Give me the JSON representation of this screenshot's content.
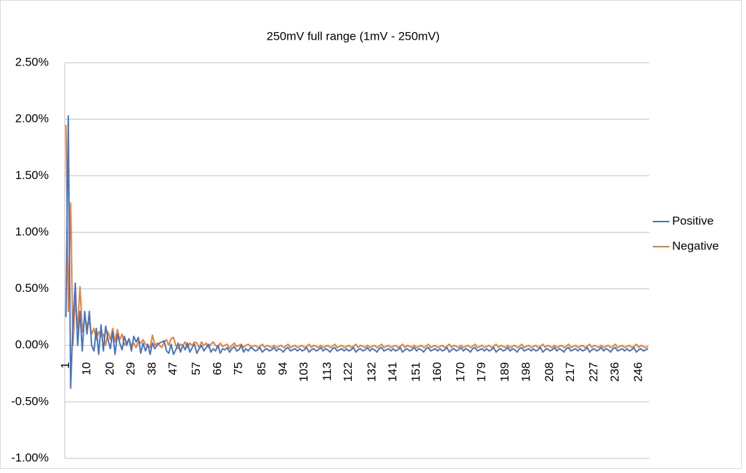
{
  "chart_data": {
    "type": "line",
    "title": "250mV full range (1mV - 250mV)",
    "categories": [
      1,
      null,
      null,
      null,
      null,
      null,
      null,
      null,
      null,
      10,
      null,
      null,
      null,
      null,
      null,
      null,
      null,
      null,
      null,
      20,
      null,
      null,
      null,
      null,
      null,
      null,
      null,
      null,
      29,
      null,
      null,
      null,
      null,
      null,
      null,
      null,
      null,
      38,
      null,
      null,
      null,
      null,
      null,
      null,
      null,
      null,
      47,
      null,
      null,
      null,
      null,
      null,
      null,
      null,
      null,
      null,
      57,
      null,
      null,
      null,
      null,
      null,
      null,
      null,
      null,
      66,
      null,
      null,
      null,
      null,
      null,
      null,
      null,
      null,
      75,
      null,
      null,
      null,
      null,
      null,
      null,
      null,
      null,
      null,
      85,
      null,
      null,
      null,
      null,
      null,
      null,
      null,
      null,
      94,
      null,
      null,
      null,
      null,
      null,
      null,
      null,
      null,
      103,
      null,
      null,
      null,
      null,
      null,
      null,
      null,
      null,
      null,
      113,
      null,
      null,
      null,
      null,
      null,
      null,
      null,
      null,
      122,
      null,
      null,
      null,
      null,
      null,
      null,
      null,
      null,
      null,
      132,
      null,
      null,
      null,
      null,
      null,
      null,
      null,
      null,
      141,
      null,
      null,
      null,
      null,
      null,
      null,
      null,
      null,
      null,
      151,
      null,
      null,
      null,
      null,
      null,
      null,
      null,
      null,
      160,
      null,
      null,
      null,
      null,
      null,
      null,
      null,
      null,
      null,
      170,
      null,
      null,
      null,
      null,
      null,
      null,
      null,
      null,
      179,
      null,
      null,
      null,
      null,
      null,
      null,
      null,
      null,
      null,
      189,
      null,
      null,
      null,
      null,
      null,
      null,
      null,
      null,
      198,
      null,
      null,
      null,
      null,
      null,
      null,
      null,
      null,
      null,
      208,
      null,
      null,
      null,
      null,
      null,
      null,
      null,
      null,
      217,
      null,
      null,
      null,
      null,
      null,
      null,
      null,
      null,
      null,
      227,
      null,
      null,
      null,
      null,
      null,
      null,
      null,
      null,
      236,
      null,
      null,
      null,
      null,
      null,
      null,
      null,
      null,
      null,
      246,
      null,
      null,
      null,
      null
    ],
    "series": [
      {
        "name": "Positive",
        "color": "#4472c4",
        "values": [
          0.25,
          2.03,
          -0.38,
          0.2,
          0.55,
          0.0,
          0.3,
          -0.05,
          0.3,
          0.1,
          0.3,
          0.0,
          -0.05,
          0.15,
          -0.08,
          0.18,
          -0.05,
          0.17,
          0.05,
          -0.03,
          0.12,
          -0.08,
          0.1,
          0.02,
          -0.04,
          0.08,
          0.0,
          0.06,
          -0.05,
          0.08,
          0.03,
          0.07,
          -0.07,
          0.02,
          -0.05,
          0.01,
          -0.08,
          0.02,
          -0.03,
          0.0,
          0.02,
          0.03,
          0.04,
          -0.05,
          -0.07,
          0.01,
          -0.08,
          -0.04,
          0.02,
          -0.06,
          0.0,
          -0.04,
          0.02,
          -0.06,
          -0.02,
          0.01,
          -0.07,
          -0.03,
          0.0,
          -0.05,
          -0.02,
          0.01,
          -0.06,
          -0.03,
          -0.05,
          0.0,
          -0.07,
          -0.03,
          -0.04,
          -0.02,
          -0.06,
          -0.03,
          -0.01,
          -0.05,
          -0.04,
          0.0,
          -0.06,
          -0.03,
          -0.05,
          -0.02,
          -0.03,
          -0.05,
          -0.04,
          -0.02,
          -0.06,
          -0.04,
          -0.03,
          -0.05,
          -0.04,
          -0.02,
          -0.05,
          -0.03,
          -0.04,
          -0.06,
          -0.03,
          -0.02,
          -0.05,
          -0.04,
          -0.03,
          -0.05,
          -0.03,
          -0.05,
          -0.04,
          -0.02,
          -0.06,
          -0.04,
          -0.03,
          -0.05,
          -0.04,
          -0.02,
          -0.05,
          -0.03,
          -0.04,
          -0.06,
          -0.03,
          -0.02,
          -0.05,
          -0.04,
          -0.03,
          -0.05,
          -0.03,
          -0.05,
          -0.04,
          -0.02,
          -0.06,
          -0.04,
          -0.03,
          -0.05,
          -0.04,
          -0.02,
          -0.05,
          -0.03,
          -0.04,
          -0.06,
          -0.03,
          -0.02,
          -0.05,
          -0.04,
          -0.03,
          -0.05,
          -0.03,
          -0.05,
          -0.04,
          -0.02,
          -0.06,
          -0.04,
          -0.03,
          -0.05,
          -0.04,
          -0.02,
          -0.05,
          -0.03,
          -0.04,
          -0.06,
          -0.03,
          -0.02,
          -0.05,
          -0.04,
          -0.03,
          -0.05,
          -0.03,
          -0.05,
          -0.04,
          -0.02,
          -0.06,
          -0.04,
          -0.03,
          -0.05,
          -0.04,
          -0.02,
          -0.05,
          -0.03,
          -0.04,
          -0.06,
          -0.03,
          -0.02,
          -0.05,
          -0.04,
          -0.03,
          -0.05,
          -0.03,
          -0.05,
          -0.04,
          -0.02,
          -0.06,
          -0.04,
          -0.03,
          -0.05,
          -0.04,
          -0.02,
          -0.05,
          -0.03,
          -0.04,
          -0.06,
          -0.03,
          -0.02,
          -0.05,
          -0.04,
          -0.03,
          -0.05,
          -0.03,
          -0.05,
          -0.04,
          -0.02,
          -0.06,
          -0.04,
          -0.03,
          -0.05,
          -0.04,
          -0.02,
          -0.05,
          -0.03,
          -0.04,
          -0.06,
          -0.03,
          -0.02,
          -0.05,
          -0.04,
          -0.03,
          -0.05,
          -0.03,
          -0.05,
          -0.04,
          -0.02,
          -0.06,
          -0.04,
          -0.03,
          -0.05,
          -0.04,
          -0.02,
          -0.05,
          -0.03,
          -0.04,
          -0.06,
          -0.03,
          -0.02,
          -0.05,
          -0.04,
          -0.03,
          -0.05,
          -0.03,
          -0.05,
          -0.04,
          -0.02,
          -0.06,
          -0.04,
          -0.03,
          -0.05,
          -0.04,
          -0.03
        ]
      },
      {
        "name": "Negative",
        "color": "#ed7d31",
        "values": [
          1.95,
          0.3,
          1.26,
          0.0,
          0.4,
          0.15,
          0.52,
          0.12,
          0.25,
          0.18,
          0.2,
          0.1,
          0.15,
          0.05,
          0.12,
          0.08,
          0.1,
          0.0,
          0.12,
          0.05,
          0.15,
          0.03,
          0.14,
          0.05,
          0.1,
          0.0,
          0.03,
          0.05,
          0.0,
          0.02,
          -0.02,
          0.04,
          0.02,
          0.05,
          0.01,
          0.0,
          -0.02,
          0.09,
          0.0,
          0.02,
          0.0,
          -0.02,
          0.03,
          0.05,
          0.0,
          0.06,
          0.07,
          0.0,
          -0.03,
          0.01,
          0.0,
          0.03,
          -0.02,
          0.02,
          0.0,
          0.03,
          0.02,
          -0.02,
          0.03,
          0.0,
          0.02,
          -0.02,
          0.01,
          0.03,
          0.0,
          -0.02,
          0.02,
          -0.01,
          0.0,
          0.01,
          -0.03,
          0.0,
          0.02,
          -0.01,
          0.0,
          0.01,
          -0.02,
          0.0,
          0.01,
          -0.01,
          -0.01,
          0.0,
          -0.02,
          -0.01,
          0.01,
          -0.02,
          0.0,
          -0.01,
          -0.02,
          0.0,
          -0.02,
          -0.01,
          0.0,
          -0.02,
          -0.01,
          0.01,
          -0.02,
          -0.01,
          0.0,
          -0.02,
          -0.01,
          0.0,
          -0.02,
          -0.01,
          0.01,
          -0.02,
          0.0,
          -0.01,
          -0.02,
          0.0,
          -0.02,
          -0.01,
          0.0,
          -0.02,
          -0.01,
          0.01,
          -0.02,
          -0.01,
          0.0,
          -0.02,
          -0.01,
          0.0,
          -0.02,
          -0.01,
          0.01,
          -0.02,
          0.0,
          -0.01,
          -0.02,
          0.0,
          -0.02,
          -0.01,
          0.0,
          -0.02,
          -0.01,
          0.01,
          -0.02,
          -0.01,
          0.0,
          -0.02,
          -0.01,
          0.0,
          -0.02,
          -0.01,
          0.01,
          -0.02,
          0.0,
          -0.01,
          -0.02,
          0.0,
          -0.02,
          -0.01,
          0.0,
          -0.02,
          -0.01,
          0.01,
          -0.02,
          -0.01,
          0.0,
          -0.02,
          -0.01,
          0.0,
          -0.02,
          -0.01,
          0.01,
          -0.02,
          0.0,
          -0.01,
          -0.02,
          0.0,
          -0.02,
          -0.01,
          0.0,
          -0.02,
          -0.01,
          0.01,
          -0.02,
          -0.01,
          0.0,
          -0.02,
          -0.01,
          0.0,
          -0.02,
          -0.01,
          0.01,
          -0.02,
          0.0,
          -0.01,
          -0.02,
          0.0,
          -0.02,
          -0.01,
          0.0,
          -0.02,
          -0.01,
          0.01,
          -0.02,
          -0.01,
          0.0,
          -0.02,
          -0.01,
          0.0,
          -0.02,
          -0.01,
          0.01,
          -0.02,
          0.0,
          -0.01,
          -0.02,
          0.0,
          -0.02,
          -0.01,
          0.0,
          -0.02,
          -0.01,
          0.01,
          -0.02,
          -0.01,
          0.0,
          -0.02,
          -0.01,
          0.0,
          -0.02,
          -0.01,
          0.01,
          -0.02,
          0.0,
          -0.01,
          -0.02,
          0.0,
          -0.02,
          -0.01,
          0.0,
          -0.02,
          -0.01,
          0.01,
          -0.02,
          -0.01,
          0.0,
          -0.02,
          -0.01,
          0.0,
          -0.02,
          -0.01,
          0.01,
          -0.02,
          0.0,
          -0.01,
          -0.02,
          -0.01
        ]
      }
    ],
    "ylim": [
      -1.0,
      2.5
    ],
    "yticks": [
      {
        "value": -1.0,
        "label": "-1.00%"
      },
      {
        "value": -0.5,
        "label": "-0.50%"
      },
      {
        "value": 0,
        "label": "0.00%"
      },
      {
        "value": 0.5,
        "label": "0.50%"
      },
      {
        "value": 1.0,
        "label": "1.00%"
      },
      {
        "value": 1.5,
        "label": "1.50%"
      },
      {
        "value": 2.0,
        "label": "2.00%"
      },
      {
        "value": 2.5,
        "label": "2.50%"
      }
    ],
    "grid": true,
    "legend": "right"
  }
}
